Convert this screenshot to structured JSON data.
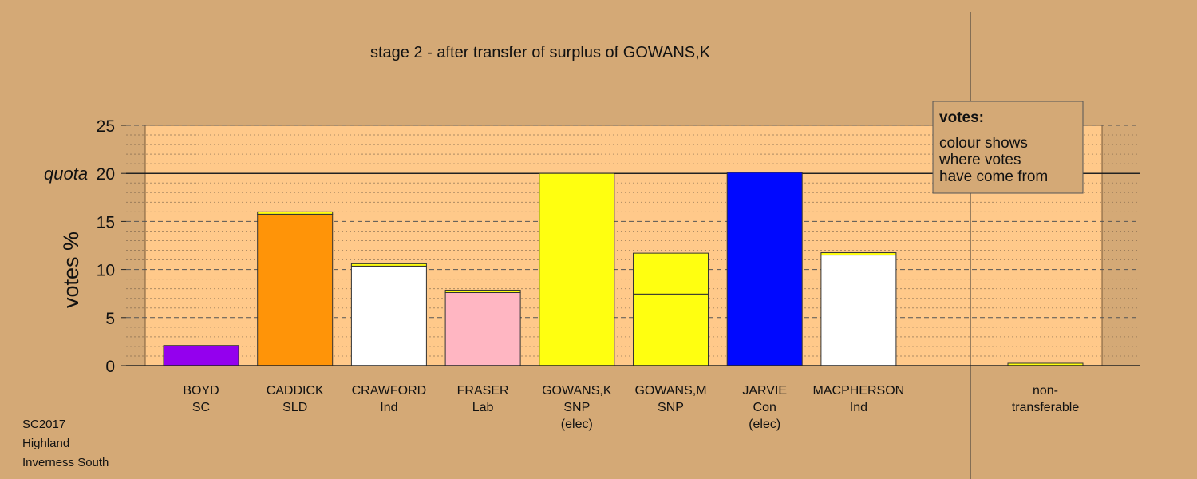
{
  "chart_data": {
    "type": "bar",
    "title": "stage 2 - after transfer of surplus of GOWANS,K",
    "xlabel": "",
    "ylabel": "votes %",
    "ylim": [
      0,
      25
    ],
    "yticks": [
      0,
      5,
      10,
      15,
      20,
      25
    ],
    "quota": 20,
    "quota_label": "quota",
    "grid": true,
    "categories": [
      {
        "lines": [
          "BOYD",
          "SC"
        ]
      },
      {
        "lines": [
          "CADDICK",
          "SLD"
        ]
      },
      {
        "lines": [
          "CRAWFORD",
          "Ind"
        ]
      },
      {
        "lines": [
          "FRASER",
          "Lab"
        ]
      },
      {
        "lines": [
          "GOWANS,K",
          "SNP",
          "(elec)"
        ]
      },
      {
        "lines": [
          "GOWANS,M",
          "SNP"
        ]
      },
      {
        "lines": [
          "JARVIE",
          "Con",
          "(elec)"
        ]
      },
      {
        "lines": [
          "MACPHERSON",
          "Ind"
        ]
      },
      {
        "lines": [
          "non-",
          "transferable"
        ]
      }
    ],
    "segments": [
      [
        {
          "value": 2.1,
          "color": "#9400ee"
        }
      ],
      [
        {
          "value": 15.75,
          "color": "#ff9408"
        },
        {
          "value": 0.25,
          "color": "#ffff10"
        }
      ],
      [
        {
          "value": 10.35,
          "color": "#ffffff"
        },
        {
          "value": 0.25,
          "color": "#ffff10"
        }
      ],
      [
        {
          "value": 7.6,
          "color": "#ffb6c2"
        },
        {
          "value": 0.25,
          "color": "#ffff10"
        }
      ],
      [
        {
          "value": 20.0,
          "color": "#ffff10"
        }
      ],
      [
        {
          "value": 7.45,
          "color": "#ffff10"
        },
        {
          "value": 4.25,
          "color": "#ffff10"
        }
      ],
      [
        {
          "value": 20.1,
          "color": "#0008ff"
        }
      ],
      [
        {
          "value": 11.5,
          "color": "#ffffff"
        },
        {
          "value": 0.25,
          "color": "#ffff10"
        }
      ],
      [
        {
          "value": 0.25,
          "color": "#ffff10"
        }
      ]
    ],
    "legend": {
      "title": "votes:",
      "lines": [
        "colour shows",
        "where votes",
        "have come from"
      ],
      "placement": "top-right"
    },
    "colors": {
      "background": "#d4a976",
      "plot_area": "#ffc98a"
    }
  },
  "footer": [
    "SC2017",
    "Highland",
    "Inverness South"
  ]
}
